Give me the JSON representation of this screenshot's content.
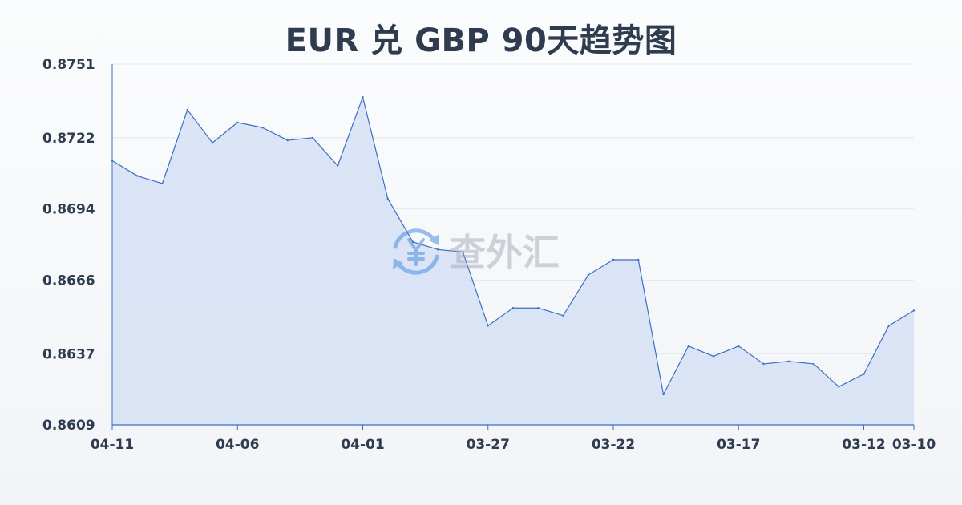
{
  "chart_data": {
    "type": "area",
    "title": "EUR 兑 GBP 90天趋势图",
    "xlabel": "",
    "ylabel": "",
    "ylim": [
      0.8609,
      0.8751
    ],
    "y_ticks": [
      "0.8751",
      "0.8722",
      "0.8694",
      "0.8666",
      "0.8637",
      "0.8609"
    ],
    "x_ticks": [
      "04-11",
      "04-06",
      "04-01",
      "03-27",
      "03-22",
      "03-17",
      "03-12",
      "03-10"
    ],
    "grid": true,
    "colors": {
      "line": "#3a6fc4",
      "fill": "#d6e0f5",
      "grid": "#e3e6eb",
      "axis": "#3a6fc4"
    },
    "series": [
      {
        "x": [
          "04-11",
          "04-10",
          "04-09",
          "04-08",
          "04-07",
          "04-06",
          "04-05",
          "04-04",
          "04-03",
          "04-02",
          "04-01",
          "03-31",
          "03-30",
          "03-29",
          "03-28",
          "03-27",
          "03-26",
          "03-25",
          "03-24",
          "03-23",
          "03-22",
          "03-21",
          "03-20",
          "03-19",
          "03-18",
          "03-17",
          "03-16",
          "03-15",
          "03-14",
          "03-13",
          "03-12",
          "03-11",
          "03-10"
        ],
        "values": [
          0.8713,
          0.8707,
          0.8704,
          0.8733,
          0.872,
          0.8728,
          0.8726,
          0.8721,
          0.8722,
          0.8711,
          0.8738,
          0.8698,
          0.8681,
          0.8678,
          0.8677,
          0.8648,
          0.8655,
          0.8655,
          0.8652,
          0.8668,
          0.8674,
          0.8674,
          0.8621,
          0.864,
          0.8636,
          0.864,
          0.8633,
          0.8634,
          0.8633,
          0.8624,
          0.8629,
          0.8648,
          0.8654
        ]
      }
    ]
  },
  "watermark": {
    "text": "查外汇",
    "icon": "yen-exchange-icon"
  }
}
